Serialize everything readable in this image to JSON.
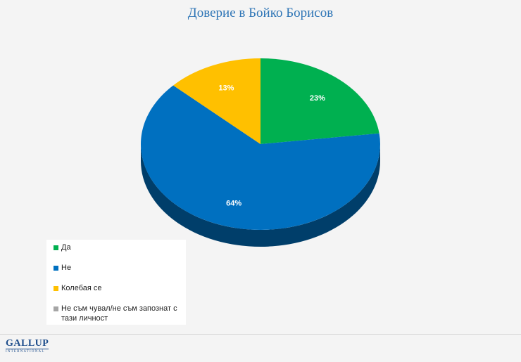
{
  "chart_data": {
    "type": "pie",
    "title": "Доверие в Бойко Борисов",
    "legend_position": "bottom-left",
    "slices": [
      {
        "label": "Да",
        "value": 23,
        "value_label": "23%",
        "color": "#00b050"
      },
      {
        "label": "Не",
        "value": 64,
        "value_label": "64%",
        "color": "#0070c0"
      },
      {
        "label": "Колебая се",
        "value": 13,
        "value_label": "13%",
        "color": "#ffc000"
      },
      {
        "label": "Не съм чувал/не съм запознат с тази личност",
        "value": 0,
        "value_label": "",
        "color": "#a5a5a5"
      }
    ]
  },
  "logo": {
    "name": "GALLUP",
    "subtitle": "INTERNATIONAL"
  }
}
